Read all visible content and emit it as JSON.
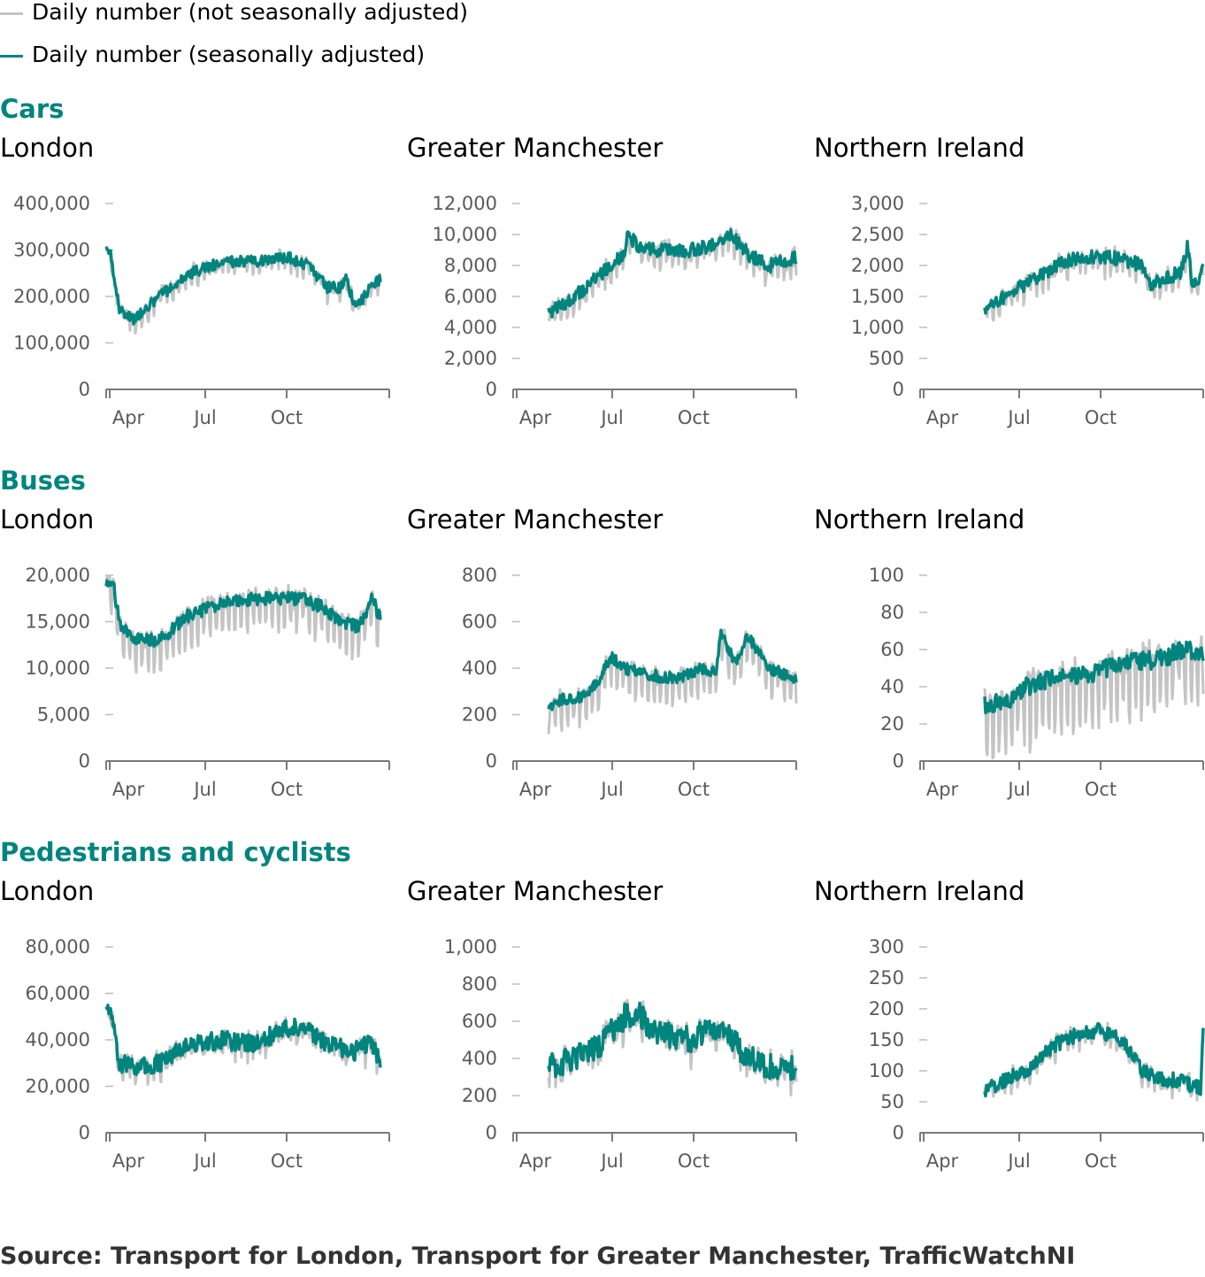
{
  "legend": {
    "items": [
      {
        "label": "Daily number (not seasonally adjusted)",
        "color": "#c4c4c4"
      },
      {
        "label": "Daily number (seasonally adjusted)",
        "color": "#00857e"
      }
    ]
  },
  "colors": {
    "nsa": "#c4c4c4",
    "sa": "#00857e",
    "axis": "#7a7a7a"
  },
  "sections": [
    {
      "title": "Cars"
    },
    {
      "title": "Buses"
    },
    {
      "title": "Pedestrians and cyclists"
    }
  ],
  "source": "Source: Transport for London, Transport for Greater Manchester, TrafficWatchNI",
  "chart_data": [
    {
      "type": "line",
      "section": "Cars",
      "title": "London",
      "x_ticks": [
        "Apr",
        "Jul",
        "Oct"
      ],
      "ylim": [
        0,
        400000
      ],
      "y_ticks": [
        {
          "value": 0,
          "label": "0"
        },
        {
          "value": 100000,
          "label": "100,000"
        },
        {
          "value": 200000,
          "label": "200,000"
        },
        {
          "value": 300000,
          "label": "300,000"
        },
        {
          "value": 400000,
          "label": "400,000"
        }
      ],
      "start_day": 0,
      "end_day": 310,
      "noise": 12000,
      "weekly": 25000,
      "profile": [
        [
          0,
          295000
        ],
        [
          5,
          290000
        ],
        [
          15,
          175000
        ],
        [
          30,
          150000
        ],
        [
          60,
          200000
        ],
        [
          95,
          250000
        ],
        [
          130,
          275000
        ],
        [
          170,
          275000
        ],
        [
          205,
          285000
        ],
        [
          225,
          270000
        ],
        [
          250,
          220000
        ],
        [
          265,
          220000
        ],
        [
          272,
          240000
        ],
        [
          280,
          180000
        ],
        [
          290,
          195000
        ],
        [
          300,
          225000
        ],
        [
          310,
          235000
        ]
      ],
      "series": [
        {
          "name": "Daily number (not seasonally adjusted)"
        },
        {
          "name": "Daily number (seasonally adjusted)"
        }
      ]
    },
    {
      "type": "line",
      "section": "Cars",
      "title": "Greater Manchester",
      "x_ticks": [
        "Apr",
        "Jul",
        "Oct"
      ],
      "ylim": [
        0,
        12000
      ],
      "y_ticks": [
        {
          "value": 0,
          "label": "0"
        },
        {
          "value": 2000,
          "label": "2,000"
        },
        {
          "value": 4000,
          "label": "4,000"
        },
        {
          "value": 6000,
          "label": "6,000"
        },
        {
          "value": 8000,
          "label": "8,000"
        },
        {
          "value": 10000,
          "label": "10,000"
        },
        {
          "value": 12000,
          "label": "12,000"
        }
      ],
      "start_day": 40,
      "end_day": 320,
      "noise": 450,
      "weekly": 1000,
      "profile": [
        [
          40,
          5000
        ],
        [
          60,
          5500
        ],
        [
          80,
          6500
        ],
        [
          100,
          7500
        ],
        [
          125,
          8800
        ],
        [
          130,
          10000
        ],
        [
          145,
          9000
        ],
        [
          170,
          9000
        ],
        [
          200,
          9000
        ],
        [
          230,
          9300
        ],
        [
          245,
          10000
        ],
        [
          270,
          8500
        ],
        [
          290,
          8000
        ],
        [
          320,
          8500
        ]
      ],
      "series": [
        {
          "name": "Daily number (not seasonally adjusted)"
        },
        {
          "name": "Daily number (seasonally adjusted)"
        }
      ]
    },
    {
      "type": "line",
      "section": "Cars",
      "title": "Northern Ireland",
      "x_ticks": [
        "Apr",
        "Jul",
        "Oct"
      ],
      "ylim": [
        0,
        3000
      ],
      "y_ticks": [
        {
          "value": 0,
          "label": "0"
        },
        {
          "value": 500,
          "label": "500"
        },
        {
          "value": 1000,
          "label": "1,000"
        },
        {
          "value": 1500,
          "label": "1,500"
        },
        {
          "value": 2000,
          "label": "2,000"
        },
        {
          "value": 2500,
          "label": "2,500"
        },
        {
          "value": 3000,
          "label": "3,000"
        }
      ],
      "start_day": 73,
      "end_day": 320,
      "noise": 110,
      "weekly": 230,
      "profile": [
        [
          73,
          1300
        ],
        [
          90,
          1450
        ],
        [
          120,
          1700
        ],
        [
          150,
          1950
        ],
        [
          170,
          2100
        ],
        [
          200,
          2150
        ],
        [
          230,
          2100
        ],
        [
          250,
          2000
        ],
        [
          260,
          1700
        ],
        [
          280,
          1800
        ],
        [
          295,
          1900
        ],
        [
          302,
          2300
        ],
        [
          308,
          1700
        ],
        [
          315,
          1800
        ],
        [
          320,
          2100
        ]
      ],
      "series": [
        {
          "name": "Daily number (not seasonally adjusted)"
        },
        {
          "name": "Daily number (seasonally adjusted)"
        }
      ]
    },
    {
      "type": "line",
      "section": "Buses",
      "title": "London",
      "x_ticks": [
        "Apr",
        "Jul",
        "Oct"
      ],
      "ylim": [
        0,
        20000
      ],
      "y_ticks": [
        {
          "value": 0,
          "label": "0"
        },
        {
          "value": 5000,
          "label": "5,000"
        },
        {
          "value": 10000,
          "label": "10,000"
        },
        {
          "value": 15000,
          "label": "15,000"
        },
        {
          "value": 20000,
          "label": "20,000"
        }
      ],
      "start_day": 0,
      "end_day": 310,
      "noise": 700,
      "weekly": 3500,
      "profile": [
        [
          0,
          19000
        ],
        [
          8,
          19000
        ],
        [
          15,
          15000
        ],
        [
          30,
          13000
        ],
        [
          60,
          13000
        ],
        [
          90,
          15500
        ],
        [
          130,
          17000
        ],
        [
          170,
          17500
        ],
        [
          220,
          17500
        ],
        [
          245,
          16500
        ],
        [
          265,
          15000
        ],
        [
          285,
          14500
        ],
        [
          295,
          16000
        ],
        [
          300,
          17500
        ],
        [
          310,
          15500
        ]
      ],
      "series": [
        {
          "name": "Daily number (not seasonally adjusted)"
        },
        {
          "name": "Daily number (seasonally adjusted)"
        }
      ]
    },
    {
      "type": "line",
      "section": "Buses",
      "title": "Greater Manchester",
      "x_ticks": [
        "Apr",
        "Jul",
        "Oct"
      ],
      "ylim": [
        0,
        800
      ],
      "y_ticks": [
        {
          "value": 0,
          "label": "0"
        },
        {
          "value": 200,
          "label": "200"
        },
        {
          "value": 400,
          "label": "400"
        },
        {
          "value": 600,
          "label": "600"
        },
        {
          "value": 800,
          "label": "800"
        }
      ],
      "start_day": 40,
      "end_day": 320,
      "noise": 25,
      "weekly": 110,
      "profile": [
        [
          40,
          240
        ],
        [
          60,
          270
        ],
        [
          80,
          280
        ],
        [
          95,
          330
        ],
        [
          110,
          450
        ],
        [
          125,
          400
        ],
        [
          145,
          380
        ],
        [
          170,
          360
        ],
        [
          190,
          360
        ],
        [
          215,
          400
        ],
        [
          230,
          380
        ],
        [
          235,
          560
        ],
        [
          250,
          420
        ],
        [
          265,
          540
        ],
        [
          290,
          400
        ],
        [
          320,
          350
        ]
      ],
      "series": [
        {
          "name": "Daily number (not seasonally adjusted)"
        },
        {
          "name": "Daily number (seasonally adjusted)"
        }
      ]
    },
    {
      "type": "line",
      "section": "Buses",
      "title": "Northern Ireland",
      "x_ticks": [
        "Apr",
        "Jul",
        "Oct"
      ],
      "ylim": [
        0,
        100
      ],
      "y_ticks": [
        {
          "value": 0,
          "label": "0"
        },
        {
          "value": 20,
          "label": "20"
        },
        {
          "value": 40,
          "label": "40"
        },
        {
          "value": 60,
          "label": "60"
        },
        {
          "value": 80,
          "label": "80"
        },
        {
          "value": 100,
          "label": "100"
        }
      ],
      "start_day": 73,
      "end_day": 320,
      "noise": 5,
      "weekly": 30,
      "profile": [
        [
          73,
          30
        ],
        [
          100,
          32
        ],
        [
          120,
          40
        ],
        [
          150,
          45
        ],
        [
          180,
          45
        ],
        [
          210,
          50
        ],
        [
          240,
          53
        ],
        [
          270,
          55
        ],
        [
          300,
          60
        ],
        [
          320,
          58
        ]
      ],
      "series": [
        {
          "name": "Daily number (not seasonally adjusted)"
        },
        {
          "name": "Daily number (seasonally adjusted)"
        }
      ]
    },
    {
      "type": "line",
      "section": "Pedestrians and cyclists",
      "title": "London",
      "x_ticks": [
        "Apr",
        "Jul",
        "Oct"
      ],
      "ylim": [
        0,
        80000
      ],
      "y_ticks": [
        {
          "value": 0,
          "label": "0"
        },
        {
          "value": 20000,
          "label": "20,000"
        },
        {
          "value": 40000,
          "label": "40,000"
        },
        {
          "value": 60000,
          "label": "60,000"
        },
        {
          "value": 80000,
          "label": "80,000"
        }
      ],
      "start_day": 0,
      "end_day": 310,
      "noise": 4000,
      "weekly": 5000,
      "profile": [
        [
          0,
          52000
        ],
        [
          8,
          48000
        ],
        [
          15,
          30000
        ],
        [
          30,
          28000
        ],
        [
          60,
          30000
        ],
        [
          90,
          37000
        ],
        [
          130,
          40000
        ],
        [
          170,
          38000
        ],
        [
          200,
          45000
        ],
        [
          225,
          45000
        ],
        [
          250,
          38000
        ],
        [
          280,
          35000
        ],
        [
          300,
          40000
        ],
        [
          310,
          30000
        ]
      ],
      "series": [
        {
          "name": "Daily number (not seasonally adjusted)"
        },
        {
          "name": "Daily number (seasonally adjusted)"
        }
      ]
    },
    {
      "type": "line",
      "section": "Pedestrians and cyclists",
      "title": "Greater Manchester",
      "x_ticks": [
        "Apr",
        "Jul",
        "Oct"
      ],
      "ylim": [
        0,
        1000
      ],
      "y_ticks": [
        {
          "value": 0,
          "label": "0"
        },
        {
          "value": 200,
          "label": "200"
        },
        {
          "value": 400,
          "label": "400"
        },
        {
          "value": 600,
          "label": "600"
        },
        {
          "value": 800,
          "label": "800"
        },
        {
          "value": 1000,
          "label": "1,000"
        }
      ],
      "start_day": 40,
      "end_day": 320,
      "noise": 70,
      "weekly": 60,
      "profile": [
        [
          40,
          350
        ],
        [
          70,
          400
        ],
        [
          100,
          480
        ],
        [
          125,
          620
        ],
        [
          140,
          650
        ],
        [
          155,
          560
        ],
        [
          180,
          520
        ],
        [
          200,
          500
        ],
        [
          220,
          560
        ],
        [
          240,
          580
        ],
        [
          255,
          450
        ],
        [
          280,
          380
        ],
        [
          300,
          330
        ],
        [
          320,
          350
        ]
      ],
      "series": [
        {
          "name": "Daily number (not seasonally adjusted)"
        },
        {
          "name": "Daily number (seasonally adjusted)"
        }
      ]
    },
    {
      "type": "line",
      "section": "Pedestrians and cyclists",
      "title": "Northern Ireland",
      "x_ticks": [
        "Apr",
        "Jul",
        "Oct"
      ],
      "ylim": [
        0,
        300
      ],
      "y_ticks": [
        {
          "value": 0,
          "label": "0"
        },
        {
          "value": 50,
          "label": "50"
        },
        {
          "value": 100,
          "label": "100"
        },
        {
          "value": 150,
          "label": "150"
        },
        {
          "value": 200,
          "label": "200"
        },
        {
          "value": 250,
          "label": "250"
        },
        {
          "value": 300,
          "label": "300"
        }
      ],
      "start_day": 73,
      "end_day": 320,
      "noise": 12,
      "weekly": 15,
      "profile": [
        [
          73,
          70
        ],
        [
          90,
          80
        ],
        [
          110,
          95
        ],
        [
          130,
          110
        ],
        [
          150,
          140
        ],
        [
          180,
          160
        ],
        [
          200,
          165
        ],
        [
          230,
          150
        ],
        [
          250,
          100
        ],
        [
          270,
          85
        ],
        [
          295,
          85
        ],
        [
          310,
          75
        ],
        [
          317,
          70
        ],
        [
          320,
          180
        ]
      ],
      "series": [
        {
          "name": "Daily number (not seasonally adjusted)"
        },
        {
          "name": "Daily number (seasonally adjusted)"
        }
      ]
    }
  ]
}
